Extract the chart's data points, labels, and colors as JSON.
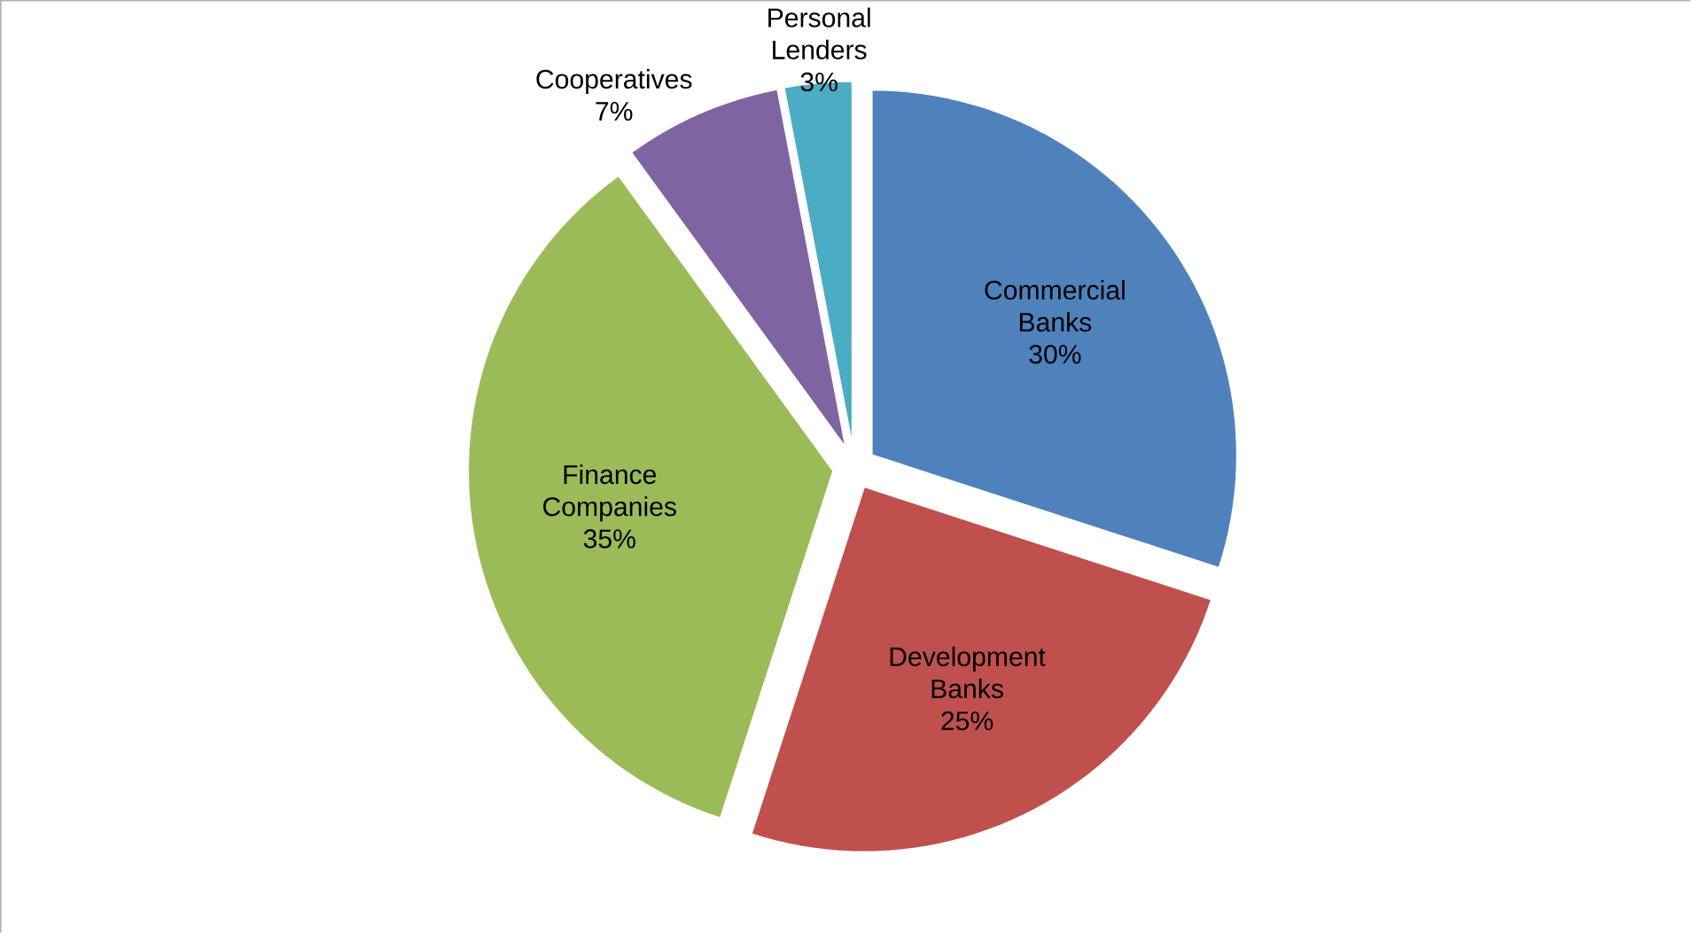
{
  "chart_data": {
    "type": "pie",
    "categories": [
      "Commercial Banks",
      "Development Banks",
      "Finance Companies",
      "Cooperatives",
      "Personal Lenders"
    ],
    "values": [
      30,
      25,
      35,
      7,
      3
    ],
    "value_labels": [
      "30%",
      "25%",
      "35%",
      "7%",
      "3%"
    ],
    "colors": [
      "#4f81bd",
      "#c0504d",
      "#9bbb59",
      "#8064a2",
      "#4bacc6"
    ]
  }
}
